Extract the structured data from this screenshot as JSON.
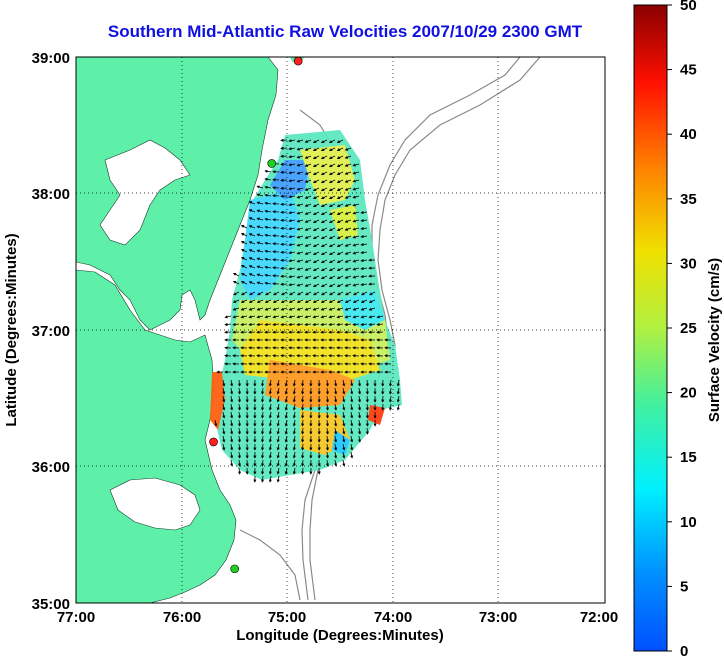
{
  "title": "Southern Mid-Atlantic Raw Velocities 2007/10/29 2300 GMT",
  "map": {
    "xlabel": "Longitude (Degrees:Minutes)",
    "ylabel": "Latitude (Degrees:Minutes)",
    "lon_ticks": [
      "77:00",
      "76:00",
      "75:00",
      "74:00",
      "73:00",
      "72:00"
    ],
    "lat_ticks": [
      "39:00",
      "38:00",
      "37:00",
      "36:00",
      "35:00"
    ],
    "lon_range": [
      -77,
      -72
    ],
    "lat_range": [
      35,
      39
    ],
    "land_color": "#5ef0a8",
    "contour_color": "#8a8a8a",
    "grid_style": "dotted"
  },
  "colorbar": {
    "label": "Surface Velocity (cm/s)",
    "ticks": [
      "50",
      "45",
      "40",
      "35",
      "30",
      "25",
      "20",
      "15",
      "10",
      "5",
      "0"
    ],
    "range": [
      0,
      50
    ],
    "colormap": "jet"
  },
  "stations": [
    {
      "color": "#ff2020",
      "lon": -74.9,
      "lat": 38.97
    },
    {
      "color": "#20d020",
      "lon": -75.15,
      "lat": 38.22
    },
    {
      "color": "#ff2020",
      "lon": -75.7,
      "lat": 36.18
    },
    {
      "color": "#20d020",
      "lon": -75.5,
      "lat": 35.25
    }
  ]
}
